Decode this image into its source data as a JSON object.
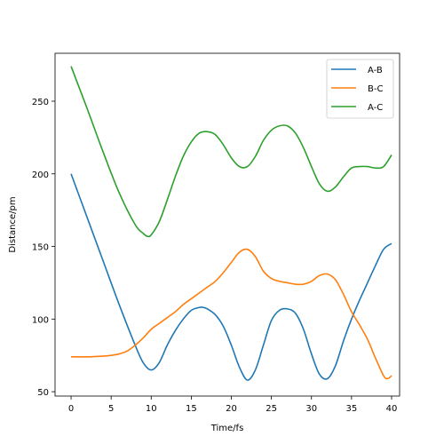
{
  "chart_data": {
    "type": "line",
    "xlabel": "Time/fs",
    "ylabel": "Distance/pm",
    "xlim": [
      -2,
      41
    ],
    "ylim": [
      47,
      283
    ],
    "xticks": [
      0,
      5,
      10,
      15,
      20,
      25,
      30,
      35,
      40
    ],
    "yticks": [
      50,
      100,
      150,
      200,
      250
    ],
    "grid": false,
    "legend_position": "top-right",
    "series": [
      {
        "name": "A-B",
        "color": "#1f77b4",
        "x": [
          0,
          2,
          4,
          6,
          8,
          9,
          10,
          11,
          12,
          13,
          14,
          15,
          16,
          16.5,
          17,
          18,
          19,
          20,
          21,
          22,
          23,
          24,
          25,
          26,
          27,
          28,
          29,
          30,
          31,
          32,
          33,
          34,
          35,
          36,
          37,
          38,
          39,
          40
        ],
        "y": [
          200,
          170,
          140,
          110,
          82,
          70,
          65,
          70,
          82,
          92,
          100,
          106,
          108,
          108,
          107,
          103,
          95,
          82,
          67,
          58,
          65,
          82,
          99,
          106,
          107,
          104,
          93,
          76,
          62,
          59,
          68,
          85,
          100,
          113,
          125,
          137,
          148,
          152
        ]
      },
      {
        "name": "B-C",
        "color": "#ff7f0e",
        "x": [
          0,
          2,
          4,
          5,
          6,
          7,
          8,
          9,
          10,
          11,
          12,
          13,
          14,
          15,
          16,
          17,
          18,
          19,
          20,
          21,
          22,
          23,
          24,
          25,
          26,
          27,
          28,
          29,
          30,
          31,
          32,
          33,
          34,
          35,
          36,
          37,
          38,
          39,
          39.5,
          40
        ],
        "y": [
          74,
          74,
          74.5,
          75,
          76,
          78,
          82,
          87,
          93,
          97,
          101,
          105,
          110,
          114,
          118,
          122,
          126,
          132,
          139,
          146,
          148,
          143,
          133,
          128,
          126,
          125,
          124,
          124,
          126,
          130,
          131,
          127,
          117,
          105,
          96,
          86,
          73,
          61,
          59,
          61
        ]
      },
      {
        "name": "A-C",
        "color": "#2ca02c",
        "x": [
          0,
          2,
          4,
          6,
          8,
          9,
          9.5,
          10,
          11,
          12,
          13,
          14,
          15,
          16,
          17,
          18,
          19,
          20,
          21,
          22,
          23,
          24,
          25,
          26,
          27,
          28,
          29,
          30,
          31,
          32,
          33,
          34,
          35,
          36,
          37,
          38,
          39,
          40
        ],
        "y": [
          274,
          245,
          215,
          187,
          165,
          159,
          157,
          158,
          167,
          182,
          198,
          212,
          222,
          228,
          229,
          227,
          220,
          211,
          205,
          205,
          212,
          223,
          230,
          233,
          233,
          228,
          218,
          205,
          193,
          188,
          191,
          198,
          204,
          205,
          205,
          204,
          205,
          213
        ]
      }
    ]
  }
}
